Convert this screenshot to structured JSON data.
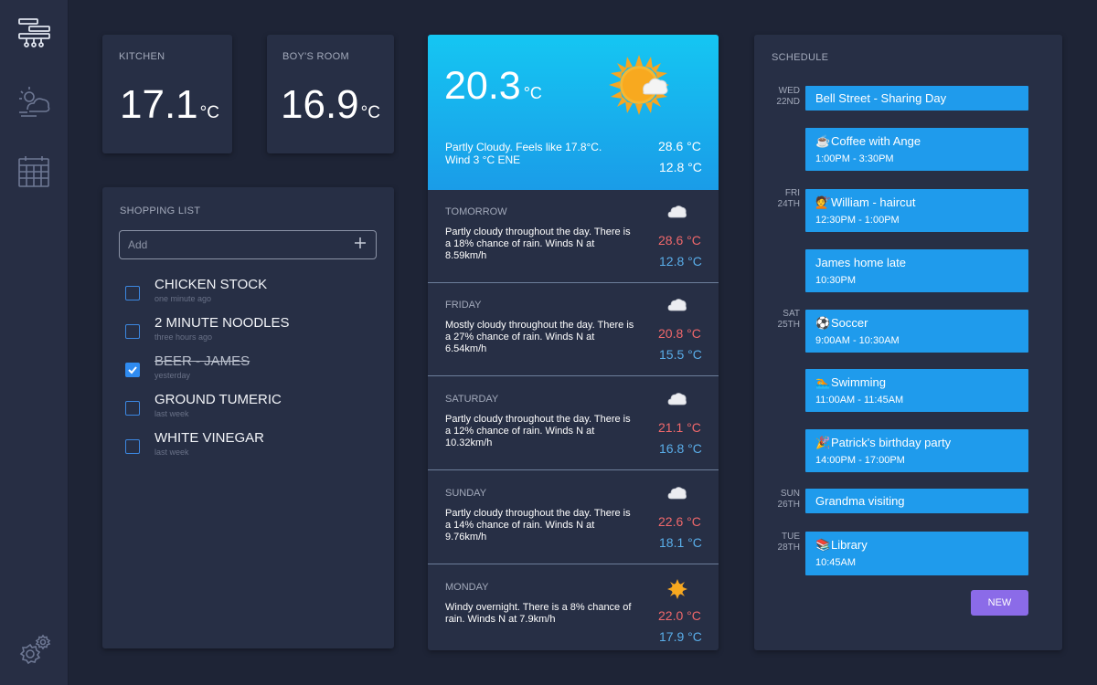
{
  "kitchen": {
    "label": "KITCHEN",
    "temp": "17.1",
    "unit": "°C"
  },
  "boys_room": {
    "label": "BOY'S ROOM",
    "temp": "16.9",
    "unit": "°C"
  },
  "shopping": {
    "title": "SHOPPING LIST",
    "placeholder": "Add",
    "items": [
      {
        "name": "CHICKEN STOCK",
        "time": "one minute ago",
        "checked": false
      },
      {
        "name": "2 MINUTE NOODLES",
        "time": "three hours ago",
        "checked": false
      },
      {
        "name": "BEER - JAMES",
        "time": "yesterday",
        "checked": true
      },
      {
        "name": "GROUND TUMERIC",
        "time": "last week",
        "checked": false
      },
      {
        "name": "WHITE VINEGAR",
        "time": "last week",
        "checked": false
      }
    ]
  },
  "weather": {
    "current": {
      "temp": "20.3",
      "unit": "°C",
      "desc_line1": "Partly Cloudy. Feels like 17.8°C.",
      "desc_line2": "Wind 3 °C ENE",
      "high": "28.6 °C",
      "low": "12.8 °C",
      "icon": "sun-cloud-icon"
    },
    "forecast": [
      {
        "day": "TOMORROW",
        "desc": "Partly cloudy throughout the day. There is a 18% chance of rain. Winds N at 8.59km/h",
        "high": "28.6 °C",
        "low": "12.8 °C",
        "icon": "cloud-icon"
      },
      {
        "day": "FRIDAY",
        "desc": "Mostly cloudy throughout the day. There is a 27% chance of rain. Winds N at 6.54km/h",
        "high": "20.8 °C",
        "low": "15.5 °C",
        "icon": "cloud-icon"
      },
      {
        "day": "SATURDAY",
        "desc": "Partly cloudy throughout the day. There is a 12% chance of rain. Winds N at 10.32km/h",
        "high": "21.1 °C",
        "low": "16.8 °C",
        "icon": "cloud-icon"
      },
      {
        "day": "SUNDAY",
        "desc": "Partly cloudy throughout the day. There is a 14% chance of rain. Winds N at 9.76km/h",
        "high": "22.6 °C",
        "low": "18.1 °C",
        "icon": "cloud-icon"
      },
      {
        "day": "MONDAY",
        "desc": "Windy overnight. There is a 8% chance of rain. Winds N at 7.9km/h",
        "high": "22.0 °C",
        "low": "17.9 °C",
        "icon": "sun-icon"
      }
    ],
    "colors": {
      "high": "#f0686b",
      "low": "#5aaeea",
      "header_top": "#15c6f2",
      "header_bottom": "#1a9ce8"
    }
  },
  "schedule": {
    "title": "SCHEDULE",
    "days": [
      {
        "dow": "WED",
        "date": "22ND"
      },
      {
        "dow": "FRI",
        "date": "24TH"
      },
      {
        "dow": "SAT",
        "date": "25TH"
      },
      {
        "dow": "SUN",
        "date": "26TH"
      },
      {
        "dow": "TUE",
        "date": "28TH"
      }
    ],
    "events": [
      {
        "emoji": "",
        "title": "Bell Street - Sharing Day",
        "time": ""
      },
      {
        "emoji": "☕",
        "title": "Coffee with Ange",
        "time": "1:00PM - 3:30PM"
      },
      {
        "emoji": "💇",
        "title": "William - haircut",
        "time": "12:30PM - 1:00PM"
      },
      {
        "emoji": "",
        "title": "James home late",
        "time": "10:30PM"
      },
      {
        "emoji": "⚽",
        "title": "Soccer",
        "time": "9:00AM - 10:30AM"
      },
      {
        "emoji": "🏊",
        "title": "Swimming",
        "time": "11:00AM - 11:45AM"
      },
      {
        "emoji": "🎉",
        "title": "Patrick's birthday party",
        "time": "14:00PM - 17:00PM"
      },
      {
        "emoji": "",
        "title": "Grandma visiting",
        "time": ""
      },
      {
        "emoji": "📚",
        "title": "Library",
        "time": "10:45AM"
      }
    ],
    "new_label": "NEW",
    "colors": {
      "event": "#1f9bec",
      "new_button": "#8b6be8"
    }
  },
  "nav": {
    "items": [
      {
        "icon": "home-devices-icon"
      },
      {
        "icon": "weather-icon"
      },
      {
        "icon": "calendar-icon"
      }
    ],
    "settings_icon": "settings-gears-icon"
  }
}
